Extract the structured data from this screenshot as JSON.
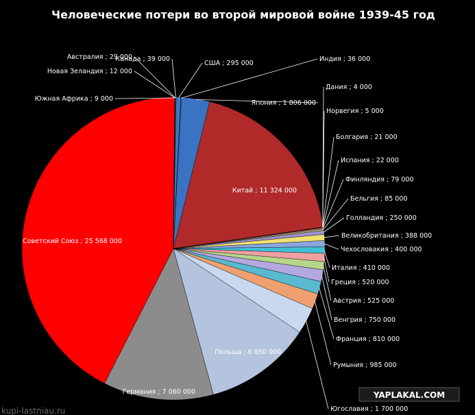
{
  "chart_data": {
    "type": "pie",
    "title": "Человеческие потери во второй мировой войне 1939-45 год",
    "label_separator": " ; ",
    "slices": [
      {
        "name": "Канада",
        "label": "Канада",
        "value_label": "39 000",
        "value": 39000,
        "color": "#5b7ea8"
      },
      {
        "name": "США",
        "label": "США",
        "value_label": "295 000",
        "value": 295000,
        "color": "#3a78c8"
      },
      {
        "name": "Индия",
        "label": "Индия",
        "value_label": "36 000",
        "value": 36000,
        "color": "#6d8f3a"
      },
      {
        "name": "Япония",
        "label": "Япония",
        "value_label": "1 806 000",
        "value": 1806000,
        "color": "#3a73c2"
      },
      {
        "name": "Китай",
        "label": "Китай",
        "value_label": "11 324 000",
        "value": 11324000,
        "color": "#b02a2a"
      },
      {
        "name": "Дания",
        "label": "Дания",
        "value_label": "4 000",
        "value": 4000,
        "color": "#9c8fd0"
      },
      {
        "name": "Норвегия",
        "label": "Норвегия",
        "value_label": "5 000",
        "value": 5000,
        "color": "#48a8c0"
      },
      {
        "name": "Болгария",
        "label": "Болгария",
        "value_label": "21 000",
        "value": 21000,
        "color": "#e0903a"
      },
      {
        "name": "Испания",
        "label": "Испания",
        "value_label": "22 000",
        "value": 22000,
        "color": "#8ab0e0"
      },
      {
        "name": "Финляндия",
        "label": "Финляндия",
        "value_label": "79 000",
        "value": 79000,
        "color": "#e68a8a"
      },
      {
        "name": "Бельгия",
        "label": "Бельгия",
        "value_label": "85 000",
        "value": 85000,
        "color": "#b8d070"
      },
      {
        "name": "Голландия",
        "label": "Голландия",
        "value_label": "250 000",
        "value": 250000,
        "color": "#a090d0"
      },
      {
        "name": "Великобритания",
        "label": "Великобритания",
        "value_label": "388 000",
        "value": 388000,
        "color": "#f0e070"
      },
      {
        "name": "Чехословакия",
        "label": "Чехословакия",
        "value_label": "400 000",
        "value": 400000,
        "color": "#8aa6e0"
      },
      {
        "name": "Италия",
        "label": "Италия",
        "value_label": "410 000",
        "value": 410000,
        "color": "#40c0d8"
      },
      {
        "name": "Греция",
        "label": "Греция",
        "value_label": "520 000",
        "value": 520000,
        "color": "#f0a0a0"
      },
      {
        "name": "Австрия",
        "label": "Австрия",
        "value_label": "525 000",
        "value": 525000,
        "color": "#b6d68a"
      },
      {
        "name": "Венгрия",
        "label": "Венгрия",
        "value_label": "750 000",
        "value": 750000,
        "color": "#b4a8e0"
      },
      {
        "name": "Франция",
        "label": "Франция",
        "value_label": "810 000",
        "value": 810000,
        "color": "#5ab8d0"
      },
      {
        "name": "Румыния",
        "label": "Румыния",
        "value_label": "985 000",
        "value": 985000,
        "color": "#f0a070"
      },
      {
        "name": "Югославия",
        "label": "Югославия",
        "value_label": "1 700 000",
        "value": 1700000,
        "color": "#c8d8ee"
      },
      {
        "name": "Польша",
        "label": "Польша",
        "value_label": "6 850 000",
        "value": 6850000,
        "color": "#b4c4de"
      },
      {
        "name": "Германия",
        "label": "Германия",
        "value_label": "7 060 000",
        "value": 7060000,
        "color": "#8c8c8c"
      },
      {
        "name": "Советский Союз",
        "label": "Советский Союз",
        "value_label": "25 568 000",
        "value": 25568000,
        "color": "#ff0000"
      },
      {
        "name": "Южная Африка",
        "label": "Южная Африка",
        "value_label": "9 000",
        "value": 9000,
        "color": "#8aa040"
      },
      {
        "name": "Новая Зеландия",
        "label": "Новая Зеландия",
        "value_label": "12 000",
        "value": 12000,
        "color": "#7070c0"
      },
      {
        "name": "Австралия",
        "label": "Австралия",
        "value_label": "29 000",
        "value": 29000,
        "color": "#40a0b0"
      }
    ]
  },
  "watermarks": {
    "site": "YAPLAKAL.COM",
    "bottom_left": "kupi-lastniau.ru"
  }
}
